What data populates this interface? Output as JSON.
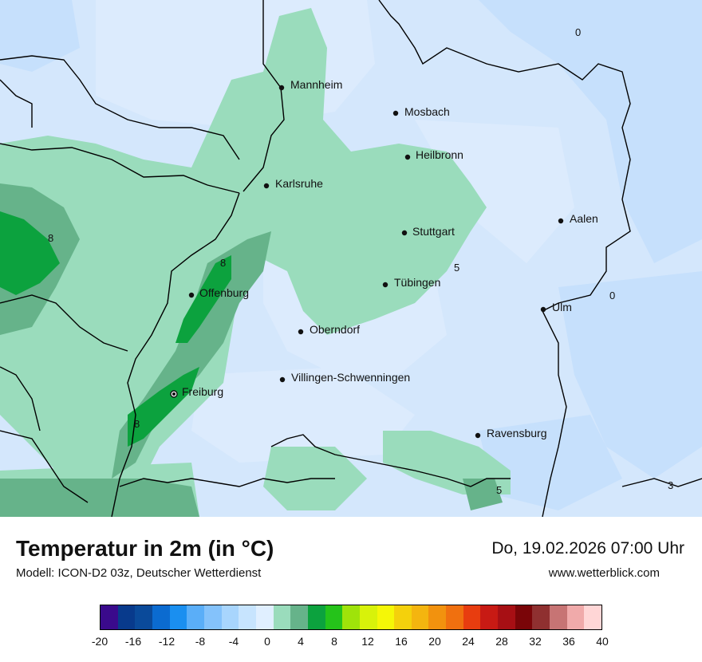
{
  "title": "Temperatur in 2m (in °C)",
  "subtitle": "Modell: ICON-D2 03z, Deutscher Wetterdienst",
  "datetime": "Do, 19.02.2026 07:00 Uhr",
  "website": "www.wetterblick.com",
  "cities": [
    {
      "name": "Mannheim"
    },
    {
      "name": "Mosbach"
    },
    {
      "name": "Heilbronn"
    },
    {
      "name": "Karlsruhe"
    },
    {
      "name": "Aalen"
    },
    {
      "name": "Stuttgart"
    },
    {
      "name": "Tübingen"
    },
    {
      "name": "Offenburg"
    },
    {
      "name": "Ulm"
    },
    {
      "name": "Oberndorf"
    },
    {
      "name": "Villingen-Schwenningen"
    },
    {
      "name": "Freiburg"
    },
    {
      "name": "Ravensburg"
    }
  ],
  "contour_labels": [
    "0",
    "8",
    "8",
    "5",
    "0",
    "8",
    "5",
    "3"
  ],
  "colorscale": {
    "ticks": [
      "-20",
      "-16",
      "-12",
      "-8",
      "-4",
      "0",
      "4",
      "8",
      "12",
      "16",
      "20",
      "24",
      "28",
      "32",
      "36",
      "40"
    ],
    "colors": [
      "#3a0a8c",
      "#083a8c",
      "#0a4a9a",
      "#0b6bd0",
      "#1a8ff0",
      "#5aaef8",
      "#84c2fb",
      "#a8d5fd",
      "#c7e4fe",
      "#e0efff",
      "#9adcbc",
      "#66b38a",
      "#0ca23e",
      "#25c31a",
      "#9fe30a",
      "#d8f20a",
      "#f5f707",
      "#f4d10c",
      "#f4b50f",
      "#f2920e",
      "#f0700f",
      "#e83d0f",
      "#c81a14",
      "#a70f14",
      "#7a0508",
      "#8f3030",
      "#c77474",
      "#f0aaaa",
      "#ffd6d6"
    ]
  }
}
